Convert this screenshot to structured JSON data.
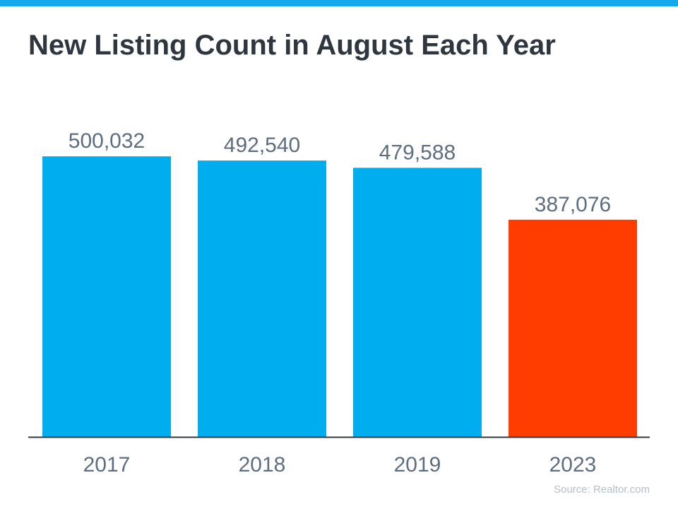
{
  "title": "New Listing Count in August Each Year",
  "source": "Source: Realtor.com",
  "colors": {
    "top_bar": "#14a9ec",
    "bar": "#00aeef",
    "highlight": "#ff3d00",
    "text": "#5d6e80",
    "title": "#2e3640"
  },
  "chart_data": {
    "type": "bar",
    "title": "New Listing Count in August Each Year",
    "categories": [
      "2017",
      "2018",
      "2019",
      "2023"
    ],
    "values": [
      500032,
      492540,
      479588,
      387076
    ],
    "data_labels": [
      "500,032",
      "492,540",
      "479,588",
      "387,076"
    ],
    "highlight": [
      "2023"
    ],
    "xlabel": "",
    "ylabel": "",
    "ylim": [
      0,
      630000
    ],
    "grid": false,
    "legend": "none"
  }
}
